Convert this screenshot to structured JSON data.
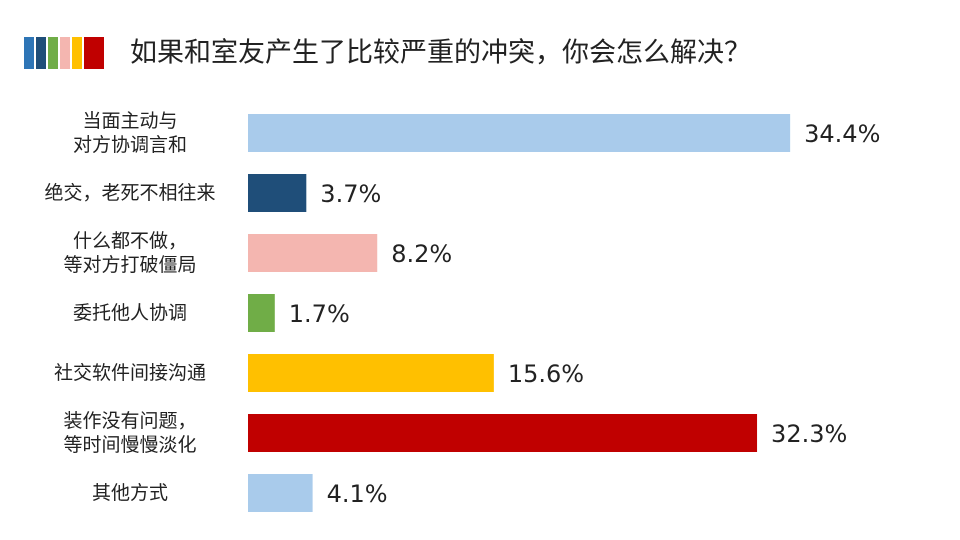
{
  "chart_data": {
    "type": "bar",
    "orientation": "horizontal",
    "title": "如果和室友产生了比较严重的冲突，你会怎么解决？",
    "categories": [
      [
        "当面主动与",
        "对方协调言和"
      ],
      [
        "绝交，老死不相往来"
      ],
      [
        "什么都不做，",
        "等对方打破僵局"
      ],
      [
        "委托他人协调"
      ],
      [
        "社交软件间接沟通"
      ],
      [
        "装作没有问题，",
        "等时间慢慢淡化"
      ],
      [
        "其他方式"
      ]
    ],
    "values": [
      34.4,
      3.7,
      8.2,
      1.7,
      15.6,
      32.3,
      4.1
    ],
    "value_labels": [
      "34.4%",
      "3.7%",
      "8.2%",
      "1.7%",
      "15.6%",
      "32.3%",
      "4.1%"
    ],
    "colors": [
      "#a9cbeb",
      "#1f4e79",
      "#f4b6b0",
      "#70ad47",
      "#ffc000",
      "#c00000",
      "#a9cbeb"
    ]
  }
}
